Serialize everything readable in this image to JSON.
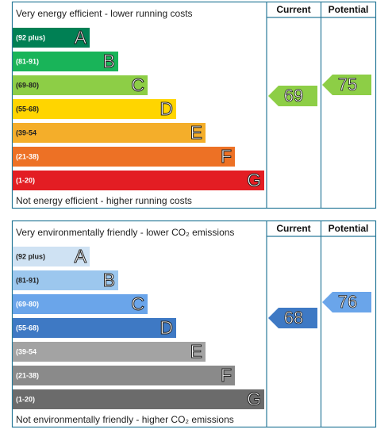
{
  "panels": [
    {
      "top_label": "Very energy efficient - lower running costs",
      "bottom_label": "Not energy efficient - higher running costs",
      "columns": [
        "Current",
        "Potential"
      ],
      "bands": [
        {
          "range": "(92 plus)",
          "letter": "A",
          "color": "#008054"
        },
        {
          "range": "(81-91)",
          "letter": "B",
          "color": "#19b459"
        },
        {
          "range": "(69-80)",
          "letter": "C",
          "color": "#8dce46"
        },
        {
          "range": "(55-68)",
          "letter": "D",
          "color": "#ffd500"
        },
        {
          "range": "(39-54",
          "letter": "E",
          "color": "#f4ae2a"
        },
        {
          "range": "(21-38)",
          "letter": "F",
          "color": "#ed7125"
        },
        {
          "range": "(1-20)",
          "letter": "G",
          "color": "#e31d23"
        }
      ],
      "current": "69",
      "potential": "75"
    },
    {
      "top_label": "Very environmentally friendly - lower CO₂ emissions",
      "bottom_label": "Not environmentally friendly - higher CO₂ emissions",
      "columns": [
        "Current",
        "Potential"
      ],
      "bands": [
        {
          "range": "(92 plus)",
          "letter": "A",
          "color": "#cfe2f3"
        },
        {
          "range": "(81-91)",
          "letter": "B",
          "color": "#9cc7ee"
        },
        {
          "range": "(69-80)",
          "letter": "C",
          "color": "#6aa5ea"
        },
        {
          "range": "(55-68)",
          "letter": "D",
          "color": "#3e79c4"
        },
        {
          "range": "(39-54",
          "letter": "E",
          "color": "#a3a3a3"
        },
        {
          "range": "(21-38)",
          "letter": "F",
          "color": "#8a8a8a"
        },
        {
          "range": "(1-20)",
          "letter": "G",
          "color": "#6b6b6b"
        }
      ],
      "current": "68",
      "potential": "76"
    }
  ]
}
